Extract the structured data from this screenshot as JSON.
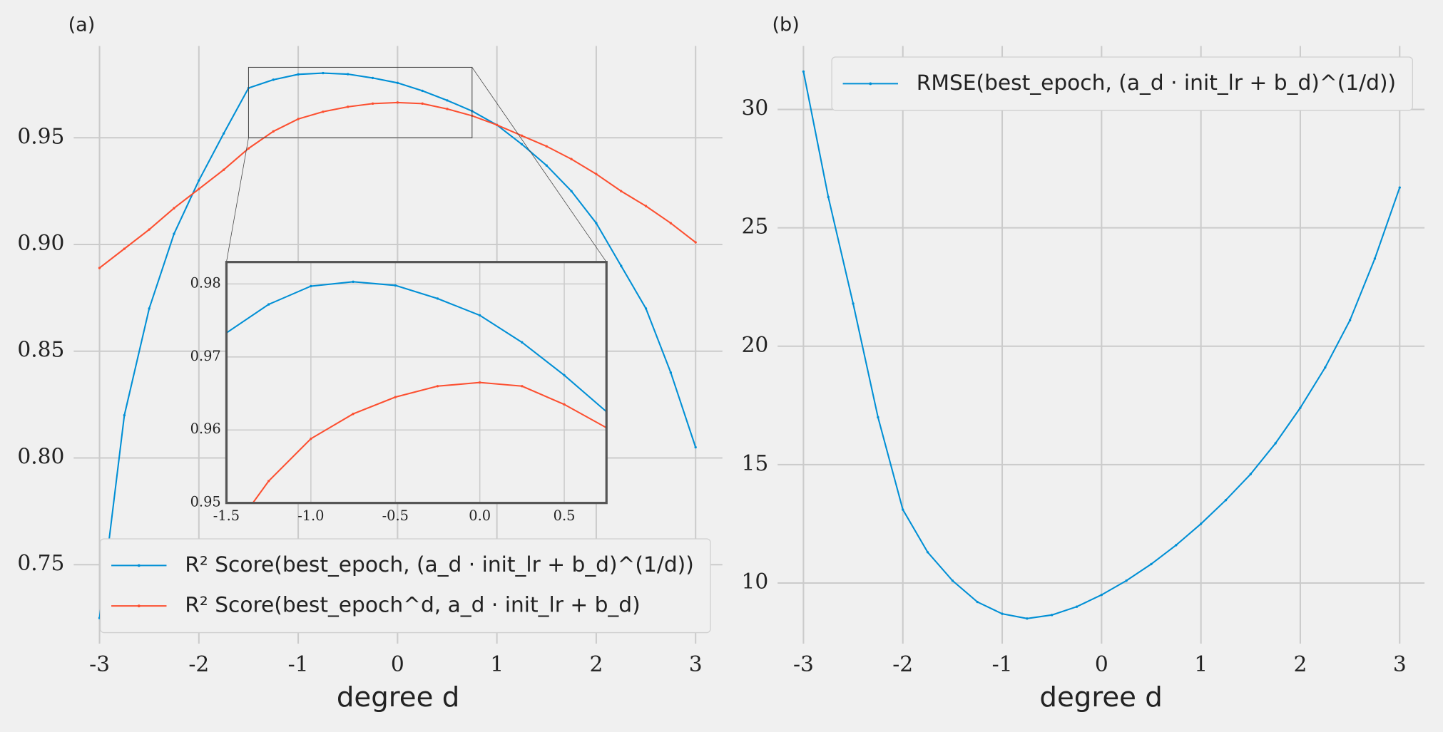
{
  "chart_data": [
    {
      "type": "line",
      "panel_label": "(a)",
      "xlabel": "degree d",
      "x": [
        -3,
        -2.75,
        -2.5,
        -2.25,
        -2,
        -1.75,
        -1.5,
        -1.25,
        -1,
        -0.75,
        -0.5,
        -0.25,
        0,
        0.25,
        0.5,
        0.75,
        1,
        1.25,
        1.5,
        1.75,
        2,
        2.25,
        2.5,
        2.75,
        3
      ],
      "series": [
        {
          "name": "R² Score(best_epoch, (a_d · init_lr + b_d)^(1/d))",
          "color": "#008fd5",
          "values": [
            0.725,
            0.82,
            0.87,
            0.905,
            0.93,
            0.952,
            0.9733,
            0.9772,
            0.9797,
            0.9803,
            0.9798,
            0.978,
            0.9757,
            0.972,
            0.9675,
            0.9625,
            0.956,
            0.947,
            0.937,
            0.925,
            0.91,
            0.89,
            0.87,
            0.84,
            0.805
          ]
        },
        {
          "name": "R² Score(best_epoch^d, a_d · init_lr + b_d)",
          "color": "#fc4f30",
          "values": [
            0.889,
            0.898,
            0.907,
            0.917,
            0.926,
            0.935,
            0.945,
            0.953,
            0.9588,
            0.9622,
            0.9645,
            0.966,
            0.9665,
            0.966,
            0.9635,
            0.9603,
            0.956,
            0.951,
            0.946,
            0.94,
            0.933,
            0.925,
            0.918,
            0.91,
            0.901
          ]
        }
      ],
      "xlim": [
        -3.26,
        3.27
      ],
      "ylim": [
        0.713,
        0.993
      ],
      "xticks": [
        -3,
        -2,
        -1,
        0,
        1,
        2,
        3
      ],
      "yticks": [
        0.75,
        {
          "value": 0.8,
          "label": "0.80"
        },
        0.85,
        {
          "value": 0.9,
          "label": "0.90"
        },
        0.95
      ],
      "grid": true,
      "legend": "lower right"
    },
    {
      "type": "line",
      "x": [
        -1.5,
        -1.25,
        -1,
        -0.75,
        -0.5,
        -0.25,
        0,
        0.25,
        0.5,
        0.75
      ],
      "series": [
        {
          "color": "#008fd5",
          "values": [
            0.9733,
            0.9772,
            0.9797,
            0.9803,
            0.9798,
            0.978,
            0.9757,
            0.972,
            0.9675,
            0.9625
          ]
        },
        {
          "color": "#fc4f30",
          "values": [
            0.945,
            0.953,
            0.9588,
            0.9622,
            0.9645,
            0.966,
            0.9665,
            0.966,
            0.9635,
            0.9603
          ]
        }
      ],
      "xlim": [
        -1.5,
        0.75
      ],
      "ylim": [
        0.95,
        0.983
      ],
      "xticks": [
        -1.5,
        {
          "value": -1,
          "label": "-1.0"
        },
        -0.5,
        {
          "value": 0,
          "label": "0.0"
        },
        0.5
      ],
      "yticks": [
        0.95,
        0.96,
        0.97,
        0.98
      ],
      "grid": true
    },
    {
      "type": "line",
      "panel_label": "(b)",
      "xlabel": "degree d",
      "x": [
        -3,
        -2.75,
        -2.5,
        -2.25,
        -2,
        -1.75,
        -1.5,
        -1.25,
        -1,
        -0.75,
        -0.5,
        -0.25,
        0,
        0.25,
        0.5,
        0.75,
        1,
        1.25,
        1.5,
        1.75,
        2,
        2.25,
        2.5,
        2.75,
        3
      ],
      "series": [
        {
          "name": "RMSE(best_epoch, (a_d · init_lr + b_d)^(1/d))",
          "color": "#008fd5",
          "values": [
            31.6,
            26.3,
            21.8,
            17,
            13.1,
            11.3,
            10.1,
            9.2,
            8.7,
            8.5,
            8.65,
            9,
            9.5,
            10.1,
            10.8,
            11.6,
            12.5,
            13.5,
            14.6,
            15.9,
            17.4,
            19.1,
            21.1,
            23.7,
            26.7
          ]
        }
      ],
      "xlim": [
        -3.26,
        3.25
      ],
      "ylim": [
        7.44,
        32.68
      ],
      "xticks": [
        -3,
        -2,
        -1,
        0,
        1,
        2,
        3
      ],
      "yticks": [
        10,
        15,
        20,
        25,
        30
      ],
      "grid": true,
      "legend": "upper right"
    }
  ]
}
